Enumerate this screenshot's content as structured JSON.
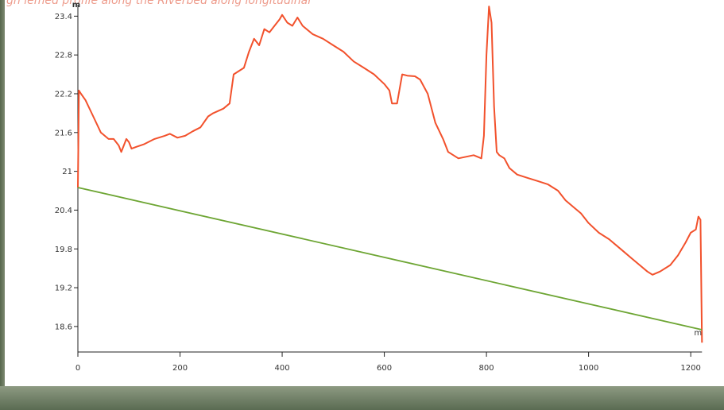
{
  "header": {
    "text": "gh  lemed profile along the Riverbed along longitudinal"
  },
  "chart_data": {
    "type": "line",
    "title": "",
    "xlabel": "",
    "ylabel": "m",
    "xlim": [
      0,
      1220
    ],
    "ylim": [
      18.3,
      23.65
    ],
    "x_ticks": [
      {
        "value": 0,
        "label": "0"
      },
      {
        "value": 200,
        "label": "200"
      },
      {
        "value": 400,
        "label": "400"
      },
      {
        "value": 600,
        "label": "600"
      },
      {
        "value": 800,
        "label": "800"
      },
      {
        "value": 1000,
        "label": "1000"
      },
      {
        "value": 1200,
        "label": "1200"
      }
    ],
    "y_ticks": [
      {
        "value": 18.6,
        "label": "18.6"
      },
      {
        "value": 19.2,
        "label": "19.2"
      },
      {
        "value": 19.8,
        "label": "19.8"
      },
      {
        "value": 20.4,
        "label": "20.4"
      },
      {
        "value": 21.0,
        "label": "21"
      },
      {
        "value": 21.6,
        "label": "21.6"
      },
      {
        "value": 22.2,
        "label": "22.2"
      },
      {
        "value": 22.8,
        "label": "22.8"
      },
      {
        "value": 23.4,
        "label": "23.4"
      }
    ],
    "end_label": "m",
    "grid": false,
    "legend": "none",
    "series": [
      {
        "color": "#f2512c",
        "points": [
          [
            0,
            20.75
          ],
          [
            2,
            22.25
          ],
          [
            6,
            22.2
          ],
          [
            15,
            22.1
          ],
          [
            30,
            21.85
          ],
          [
            45,
            21.6
          ],
          [
            60,
            21.5
          ],
          [
            70,
            21.5
          ],
          [
            80,
            21.4
          ],
          [
            85,
            21.3
          ],
          [
            95,
            21.5
          ],
          [
            100,
            21.45
          ],
          [
            105,
            21.35
          ],
          [
            115,
            21.38
          ],
          [
            130,
            21.42
          ],
          [
            150,
            21.5
          ],
          [
            170,
            21.55
          ],
          [
            180,
            21.58
          ],
          [
            195,
            21.52
          ],
          [
            210,
            21.55
          ],
          [
            225,
            21.62
          ],
          [
            240,
            21.68
          ],
          [
            255,
            21.85
          ],
          [
            265,
            21.9
          ],
          [
            285,
            21.97
          ],
          [
            297,
            22.05
          ],
          [
            305,
            22.5
          ],
          [
            315,
            22.55
          ],
          [
            325,
            22.6
          ],
          [
            335,
            22.85
          ],
          [
            345,
            23.05
          ],
          [
            355,
            22.95
          ],
          [
            365,
            23.2
          ],
          [
            375,
            23.15
          ],
          [
            385,
            23.25
          ],
          [
            395,
            23.35
          ],
          [
            400,
            23.42
          ],
          [
            410,
            23.3
          ],
          [
            420,
            23.25
          ],
          [
            430,
            23.38
          ],
          [
            440,
            23.25
          ],
          [
            460,
            23.12
          ],
          [
            480,
            23.05
          ],
          [
            500,
            22.95
          ],
          [
            520,
            22.85
          ],
          [
            540,
            22.7
          ],
          [
            560,
            22.6
          ],
          [
            580,
            22.5
          ],
          [
            600,
            22.35
          ],
          [
            610,
            22.25
          ],
          [
            615,
            22.05
          ],
          [
            625,
            22.05
          ],
          [
            635,
            22.5
          ],
          [
            645,
            22.48
          ],
          [
            660,
            22.47
          ],
          [
            670,
            22.42
          ],
          [
            685,
            22.2
          ],
          [
            700,
            21.75
          ],
          [
            715,
            21.5
          ],
          [
            725,
            21.3
          ],
          [
            745,
            21.2
          ],
          [
            775,
            21.25
          ],
          [
            790,
            21.2
          ],
          [
            795,
            21.55
          ],
          [
            800,
            22.8
          ],
          [
            805,
            23.55
          ],
          [
            810,
            23.3
          ],
          [
            815,
            22.0
          ],
          [
            820,
            21.3
          ],
          [
            825,
            21.25
          ],
          [
            835,
            21.2
          ],
          [
            845,
            21.05
          ],
          [
            860,
            20.95
          ],
          [
            880,
            20.9
          ],
          [
            900,
            20.85
          ],
          [
            920,
            20.8
          ],
          [
            940,
            20.7
          ],
          [
            955,
            20.55
          ],
          [
            970,
            20.45
          ],
          [
            985,
            20.35
          ],
          [
            1000,
            20.2
          ],
          [
            1020,
            20.05
          ],
          [
            1040,
            19.95
          ],
          [
            1055,
            19.85
          ],
          [
            1070,
            19.75
          ],
          [
            1085,
            19.65
          ],
          [
            1100,
            19.55
          ],
          [
            1115,
            19.45
          ],
          [
            1125,
            19.4
          ],
          [
            1140,
            19.45
          ],
          [
            1160,
            19.55
          ],
          [
            1175,
            19.7
          ],
          [
            1190,
            19.9
          ],
          [
            1200,
            20.05
          ],
          [
            1210,
            20.1
          ],
          [
            1215,
            20.3
          ],
          [
            1219,
            20.25
          ],
          [
            1222,
            18.35
          ]
        ]
      },
      {
        "color": "#6da533",
        "points": [
          [
            0,
            20.75
          ],
          [
            1222,
            18.55
          ]
        ]
      }
    ]
  }
}
